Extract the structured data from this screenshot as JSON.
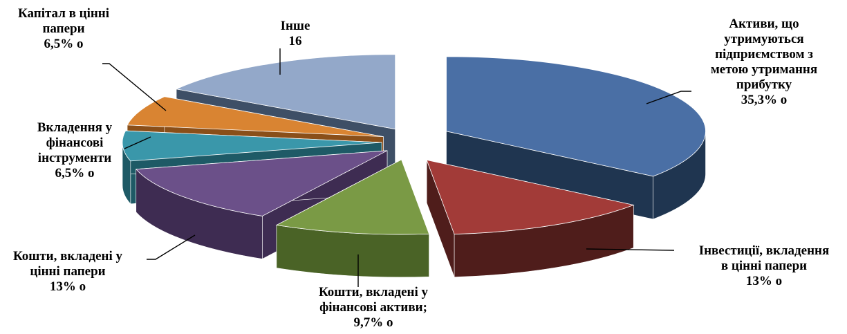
{
  "chart_data": {
    "type": "pie",
    "style": "3d-exploded",
    "legend": "none",
    "slices": [
      {
        "label_lines": [
          "Активи, що",
          "утримуються",
          "підприємством з",
          "метою утримання",
          "прибутку"
        ],
        "value_text": "35,3% о",
        "value": 35.3,
        "color": "#4a6fa5",
        "side": "#1f3550"
      },
      {
        "label_lines": [
          "Інвестиції, вкладення",
          "в цінні папери"
        ],
        "value_text": "13% о",
        "value": 13,
        "color": "#a23b38",
        "side": "#4f1d1b"
      },
      {
        "label_lines": [
          "Кошти, вкладені у",
          "фінансові активи;"
        ],
        "value_text": "9,7% о",
        "value": 9.7,
        "color": "#7a9a45",
        "side": "#4a6326"
      },
      {
        "label_lines": [
          "Кошти, вкладені у",
          "цінні папери"
        ],
        "value_text": "13% о",
        "value": 13,
        "color": "#6b5089",
        "side": "#3e2c52"
      },
      {
        "label_lines": [
          "Вкладення у",
          "фінансові",
          "інструменти"
        ],
        "value_text": "6,5% о",
        "value": 6.5,
        "color": "#3a97aa",
        "side": "#1e5a66"
      },
      {
        "label_lines": [
          "Капітал в цінні",
          "папери"
        ],
        "value_text": "6,5% о",
        "value": 6.5,
        "color": "#d98432",
        "side": "#8a4f19"
      },
      {
        "label_lines": [
          "Інше"
        ],
        "value_text": "16",
        "value": 16,
        "color": "#93a8c9",
        "side": "#3e4f66"
      }
    ]
  }
}
